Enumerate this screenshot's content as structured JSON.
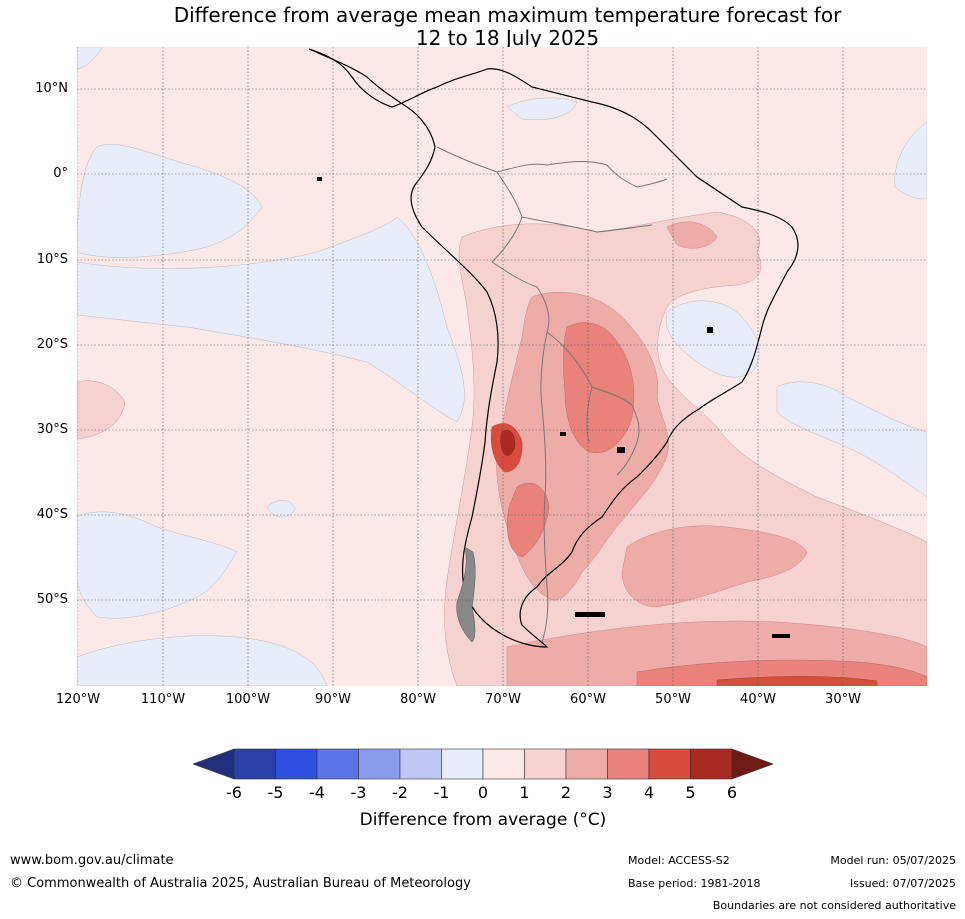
{
  "title_line1": "Difference from average mean maximum temperature forecast for",
  "title_line2": "12 to 18 July 2025",
  "latitude_labels": [
    "10°N",
    "0°",
    "10°S",
    "20°S",
    "30°S",
    "40°S",
    "50°S"
  ],
  "longitude_labels": [
    "120°W",
    "110°W",
    "100°W",
    "90°W",
    "80°W",
    "70°W",
    "60°W",
    "50°W",
    "40°W",
    "30°W"
  ],
  "colorbar": {
    "ticks": [
      "-6",
      "-5",
      "-4",
      "-3",
      "-2",
      "-1",
      "0",
      "1",
      "2",
      "3",
      "4",
      "5",
      "6"
    ],
    "colors": [
      "#2a3fa8",
      "#2f4fe0",
      "#5a74e6",
      "#8a9bee",
      "#bfc8f4",
      "#e9ecfb",
      "#fce9e7",
      "#f5d2d0",
      "#edaca7",
      "#e8827b",
      "#d84c3e",
      "#a82a22"
    ],
    "low_extend_color": "#1f2f7a",
    "high_extend_color": "#6e1a16",
    "label": "Difference from average (°C)"
  },
  "footer": {
    "website": "www.bom.gov.au/climate",
    "copyright": "© Commonwealth of Australia 2025, Australian Bureau of Meteorology",
    "model": "Model: ACCESS-S2",
    "base_period": "Base period: 1981-2018",
    "model_run": "Model run: 05/07/2025",
    "issued": "Issued: 07/07/2025",
    "disclaimer": "Boundaries are not considered authoritative"
  }
}
